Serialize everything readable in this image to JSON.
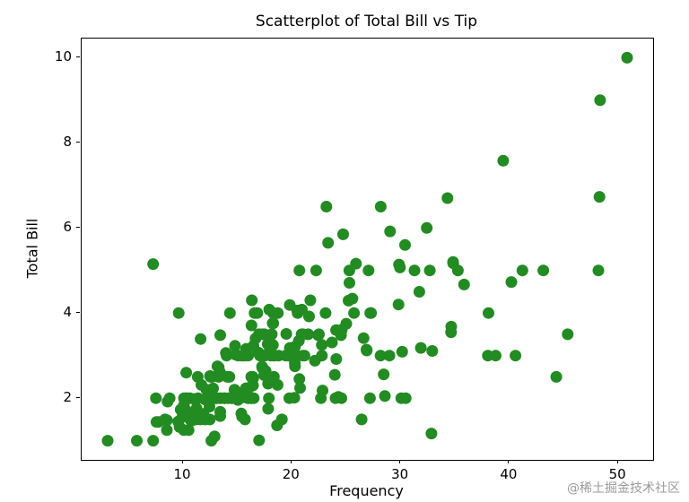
{
  "title": "Scatterplot of Total Bill vs Tip",
  "watermark": "@稀土掘金技术社区",
  "chart_data": {
    "type": "scatter",
    "title": "Scatterplot of Total Bill vs Tip",
    "xlabel": "Frequency",
    "ylabel": "Total Bill",
    "xlim": [
      0.68,
      53.2
    ],
    "ylim": [
      0.55,
      10.45
    ],
    "x_ticks": [
      10,
      20,
      30,
      40,
      50
    ],
    "y_ticks": [
      2,
      4,
      6,
      8,
      10
    ],
    "grid": false,
    "legend": false,
    "marker_color": "#228B22",
    "marker_radius_px": 6.5,
    "background": "#ffffff",
    "points": [
      [
        16.99,
        1.01
      ],
      [
        10.34,
        1.66
      ],
      [
        21.01,
        3.5
      ],
      [
        23.68,
        3.31
      ],
      [
        24.59,
        3.61
      ],
      [
        25.29,
        4.71
      ],
      [
        8.77,
        2.0
      ],
      [
        26.88,
        3.12
      ],
      [
        15.04,
        1.96
      ],
      [
        14.78,
        3.23
      ],
      [
        10.27,
        1.71
      ],
      [
        35.26,
        5.0
      ],
      [
        15.42,
        1.57
      ],
      [
        18.43,
        3.0
      ],
      [
        14.83,
        3.02
      ],
      [
        21.58,
        3.92
      ],
      [
        10.33,
        1.67
      ],
      [
        16.29,
        3.71
      ],
      [
        16.97,
        3.5
      ],
      [
        20.65,
        3.35
      ],
      [
        17.92,
        4.08
      ],
      [
        20.29,
        2.75
      ],
      [
        15.77,
        2.23
      ],
      [
        39.42,
        7.58
      ],
      [
        19.82,
        3.18
      ],
      [
        17.81,
        2.34
      ],
      [
        13.37,
        2.0
      ],
      [
        12.69,
        2.0
      ],
      [
        21.7,
        4.3
      ],
      [
        19.65,
        3.0
      ],
      [
        9.55,
        1.45
      ],
      [
        18.35,
        2.5
      ],
      [
        15.06,
        3.0
      ],
      [
        20.69,
        2.45
      ],
      [
        17.78,
        3.27
      ],
      [
        24.06,
        3.6
      ],
      [
        16.31,
        2.0
      ],
      [
        16.93,
        3.07
      ],
      [
        18.69,
        2.31
      ],
      [
        31.27,
        5.0
      ],
      [
        16.04,
        2.24
      ],
      [
        17.46,
        2.54
      ],
      [
        13.94,
        3.06
      ],
      [
        9.68,
        1.32
      ],
      [
        30.4,
        5.6
      ],
      [
        18.29,
        3.0
      ],
      [
        22.23,
        5.0
      ],
      [
        32.4,
        6.0
      ],
      [
        28.55,
        2.05
      ],
      [
        18.04,
        3.0
      ],
      [
        12.54,
        2.5
      ],
      [
        10.29,
        2.6
      ],
      [
        34.81,
        5.2
      ],
      [
        9.94,
        1.56
      ],
      [
        25.56,
        4.34
      ],
      [
        19.49,
        3.51
      ],
      [
        38.01,
        3.0
      ],
      [
        26.41,
        1.5
      ],
      [
        11.24,
        1.76
      ],
      [
        48.27,
        6.73
      ],
      [
        20.29,
        3.21
      ],
      [
        13.81,
        2.0
      ],
      [
        11.02,
        1.98
      ],
      [
        18.29,
        3.76
      ],
      [
        17.59,
        2.64
      ],
      [
        20.08,
        3.15
      ],
      [
        16.45,
        2.47
      ],
      [
        3.07,
        1.0
      ],
      [
        20.23,
        2.01
      ],
      [
        15.01,
        2.09
      ],
      [
        12.02,
        1.97
      ],
      [
        17.07,
        3.0
      ],
      [
        26.86,
        3.14
      ],
      [
        25.28,
        5.0
      ],
      [
        14.73,
        2.2
      ],
      [
        10.51,
        1.25
      ],
      [
        17.92,
        3.08
      ],
      [
        27.2,
        4.0
      ],
      [
        22.76,
        3.0
      ],
      [
        17.29,
        2.71
      ],
      [
        19.44,
        3.0
      ],
      [
        16.66,
        3.4
      ],
      [
        10.07,
        1.83
      ],
      [
        32.68,
        5.0
      ],
      [
        15.98,
        2.03
      ],
      [
        34.83,
        5.17
      ],
      [
        13.03,
        2.0
      ],
      [
        18.28,
        4.0
      ],
      [
        24.71,
        5.85
      ],
      [
        21.16,
        3.0
      ],
      [
        28.97,
        3.0
      ],
      [
        22.49,
        3.5
      ],
      [
        5.75,
        1.0
      ],
      [
        16.32,
        4.3
      ],
      [
        22.75,
        3.25
      ],
      [
        40.17,
        4.73
      ],
      [
        27.28,
        4.0
      ],
      [
        12.03,
        1.5
      ],
      [
        21.01,
        3.0
      ],
      [
        12.46,
        1.5
      ],
      [
        11.35,
        2.5
      ],
      [
        15.38,
        3.0
      ],
      [
        44.3,
        2.5
      ],
      [
        22.42,
        3.48
      ],
      [
        20.92,
        4.08
      ],
      [
        15.36,
        1.64
      ],
      [
        20.49,
        4.06
      ],
      [
        25.21,
        4.29
      ],
      [
        18.24,
        3.76
      ],
      [
        14.31,
        4.0
      ],
      [
        14.0,
        3.0
      ],
      [
        7.25,
        1.0
      ],
      [
        38.07,
        4.0
      ],
      [
        23.95,
        2.55
      ],
      [
        25.71,
        4.0
      ],
      [
        17.31,
        3.5
      ],
      [
        29.93,
        5.07
      ],
      [
        10.65,
        1.5
      ],
      [
        12.43,
        1.8
      ],
      [
        24.08,
        2.92
      ],
      [
        11.69,
        2.31
      ],
      [
        13.42,
        1.68
      ],
      [
        14.26,
        2.5
      ],
      [
        15.95,
        2.0
      ],
      [
        12.48,
        2.52
      ],
      [
        29.8,
        4.2
      ],
      [
        8.52,
        1.48
      ],
      [
        14.52,
        2.0
      ],
      [
        11.38,
        2.0
      ],
      [
        22.82,
        2.18
      ],
      [
        19.08,
        1.5
      ],
      [
        20.27,
        2.83
      ],
      [
        11.17,
        1.5
      ],
      [
        12.26,
        2.0
      ],
      [
        18.26,
        3.25
      ],
      [
        8.51,
        1.25
      ],
      [
        10.33,
        2.0
      ],
      [
        14.15,
        2.0
      ],
      [
        16.0,
        2.0
      ],
      [
        13.16,
        2.75
      ],
      [
        17.47,
        3.5
      ],
      [
        34.3,
        6.7
      ],
      [
        41.19,
        5.0
      ],
      [
        27.05,
        5.0
      ],
      [
        16.43,
        2.3
      ],
      [
        8.35,
        1.5
      ],
      [
        18.64,
        1.36
      ],
      [
        11.87,
        1.63
      ],
      [
        9.78,
        1.73
      ],
      [
        7.51,
        2.0
      ],
      [
        14.07,
        2.5
      ],
      [
        13.13,
        2.0
      ],
      [
        17.26,
        2.74
      ],
      [
        24.55,
        2.0
      ],
      [
        19.77,
        2.0
      ],
      [
        29.85,
        5.14
      ],
      [
        48.17,
        5.0
      ],
      [
        25.0,
        3.75
      ],
      [
        13.39,
        2.61
      ],
      [
        16.49,
        2.0
      ],
      [
        21.5,
        3.5
      ],
      [
        12.66,
        2.5
      ],
      [
        16.21,
        2.0
      ],
      [
        13.81,
        2.0
      ],
      [
        17.51,
        3.0
      ],
      [
        24.52,
        3.48
      ],
      [
        20.76,
        2.24
      ],
      [
        31.71,
        4.5
      ],
      [
        10.59,
        1.61
      ],
      [
        10.63,
        2.0
      ],
      [
        50.81,
        10.0
      ],
      [
        15.81,
        3.16
      ],
      [
        7.25,
        5.15
      ],
      [
        31.85,
        3.18
      ],
      [
        16.82,
        4.0
      ],
      [
        32.9,
        3.11
      ],
      [
        17.89,
        2.0
      ],
      [
        14.48,
        2.0
      ],
      [
        9.6,
        4.0
      ],
      [
        34.63,
        3.55
      ],
      [
        34.65,
        3.68
      ],
      [
        23.33,
        5.65
      ],
      [
        45.35,
        3.5
      ],
      [
        23.17,
        6.5
      ],
      [
        40.55,
        3.0
      ],
      [
        20.69,
        5.0
      ],
      [
        20.9,
        3.5
      ],
      [
        30.46,
        2.0
      ],
      [
        18.15,
        3.5
      ],
      [
        23.1,
        4.0
      ],
      [
        15.69,
        1.5
      ],
      [
        19.81,
        4.19
      ],
      [
        28.44,
        2.56
      ],
      [
        15.48,
        2.02
      ],
      [
        16.58,
        4.0
      ],
      [
        7.56,
        1.44
      ],
      [
        10.34,
        2.0
      ],
      [
        43.11,
        5.0
      ],
      [
        13.0,
        2.0
      ],
      [
        13.51,
        2.0
      ],
      [
        18.71,
        4.0
      ],
      [
        12.74,
        2.01
      ],
      [
        13.0,
        2.0
      ],
      [
        16.4,
        2.5
      ],
      [
        20.53,
        4.0
      ],
      [
        16.47,
        3.23
      ],
      [
        26.59,
        3.41
      ],
      [
        38.73,
        3.0
      ],
      [
        24.27,
        2.03
      ],
      [
        12.76,
        2.23
      ],
      [
        30.06,
        2.0
      ],
      [
        25.89,
        5.16
      ],
      [
        48.33,
        9.0
      ],
      [
        13.27,
        2.5
      ],
      [
        28.17,
        6.5
      ],
      [
        12.9,
        1.1
      ],
      [
        28.15,
        3.0
      ],
      [
        11.59,
        1.5
      ],
      [
        7.74,
        1.44
      ],
      [
        30.14,
        3.09
      ],
      [
        12.16,
        2.2
      ],
      [
        13.42,
        3.48
      ],
      [
        8.58,
        1.92
      ],
      [
        15.98,
        3.0
      ],
      [
        13.42,
        1.58
      ],
      [
        16.27,
        2.5
      ],
      [
        10.09,
        2.0
      ],
      [
        20.45,
        3.0
      ],
      [
        13.28,
        2.72
      ],
      [
        22.12,
        2.88
      ],
      [
        24.01,
        2.0
      ],
      [
        15.69,
        3.0
      ],
      [
        11.61,
        3.39
      ],
      [
        10.77,
        1.47
      ],
      [
        15.53,
        3.0
      ],
      [
        10.07,
        1.25
      ],
      [
        12.6,
        1.0
      ],
      [
        32.83,
        1.17
      ],
      [
        35.83,
        4.67
      ],
      [
        29.03,
        5.92
      ],
      [
        27.18,
        2.0
      ],
      [
        22.67,
        2.0
      ],
      [
        17.82,
        1.75
      ],
      [
        18.78,
        3.0
      ]
    ]
  }
}
